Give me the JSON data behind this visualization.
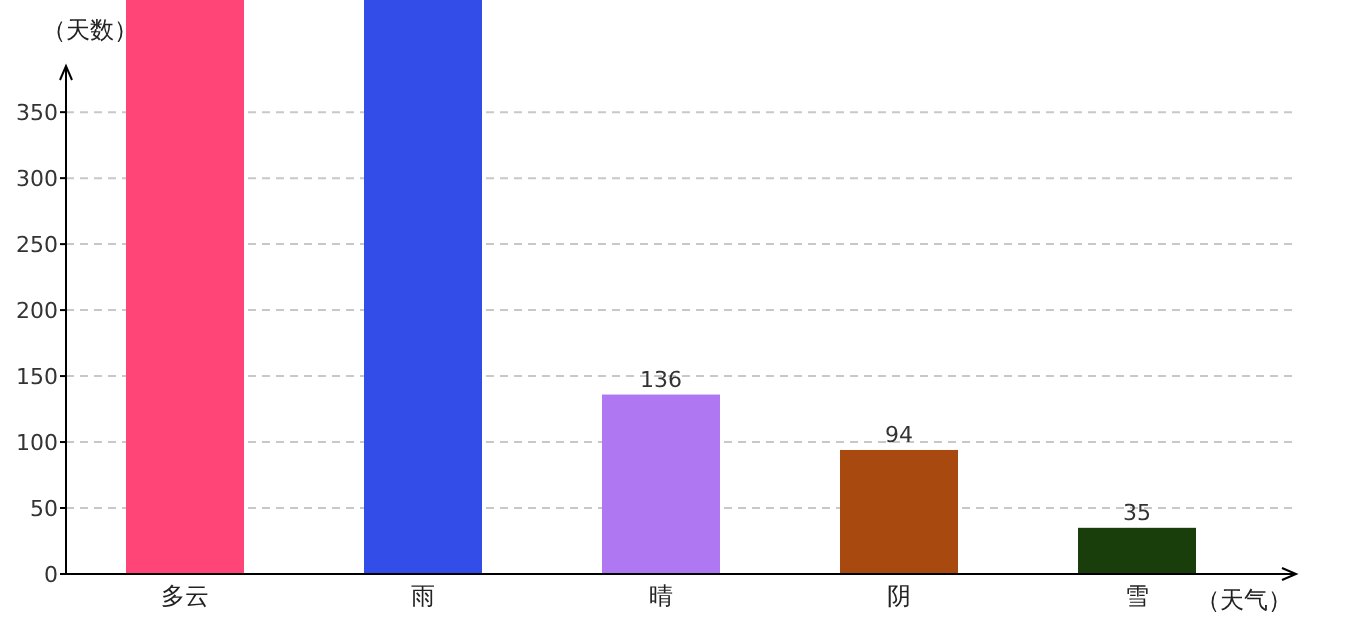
{
  "chart_data": {
    "type": "bar",
    "xlabel": "（天气）",
    "ylabel": "（天数）",
    "categories": [
      "多云",
      "雨",
      "晴",
      "阴",
      "雪"
    ],
    "values": [
      435,
      435,
      136,
      94,
      35
    ],
    "colors": [
      "#ff4477",
      "#334ee8",
      "#b077f2",
      "#a84a10",
      "#1a3d0c"
    ],
    "value_labels": [
      null,
      null,
      "136",
      "94",
      "35"
    ],
    "ylim": [
      0,
      435
    ],
    "yticks": [
      0,
      50,
      100,
      150,
      200,
      250,
      300,
      350
    ],
    "grid": "y"
  }
}
